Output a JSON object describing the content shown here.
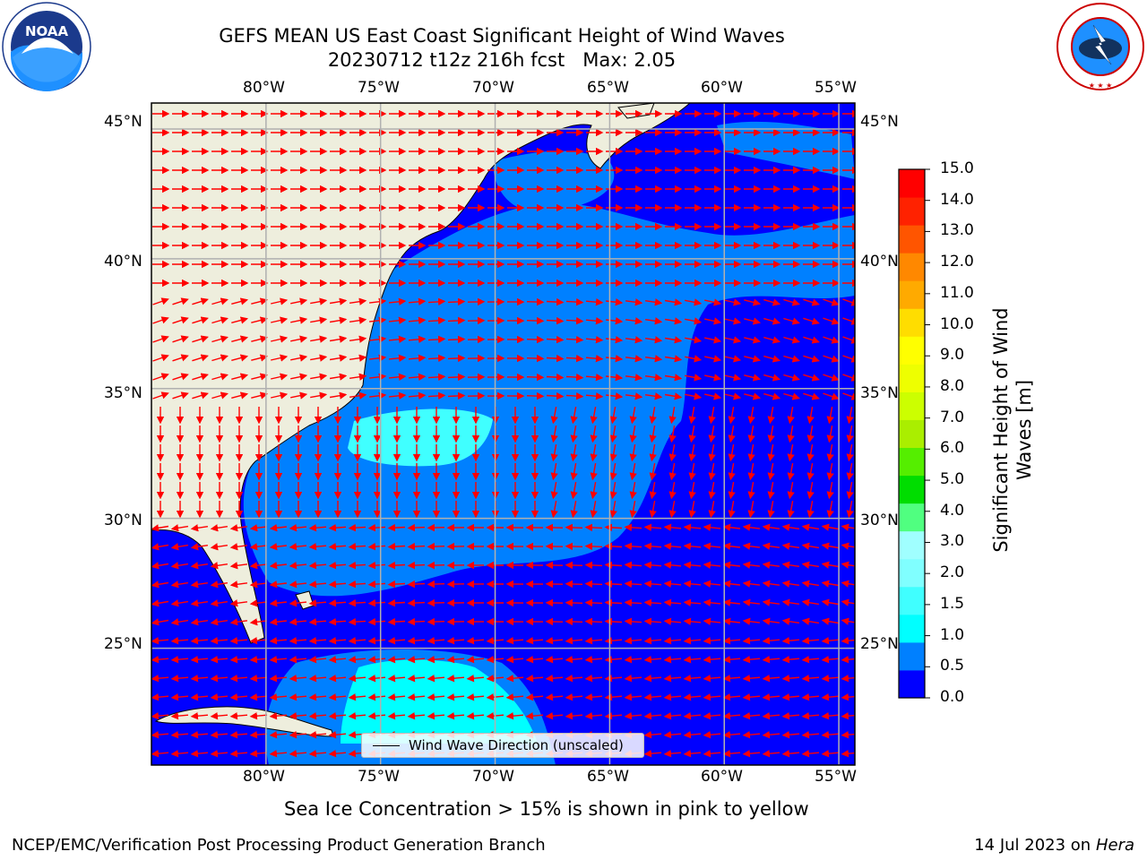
{
  "title": {
    "line1": "GEFS MEAN US East Coast Significant Height of Wind Waves",
    "line2": "20230712 t12z 216h fcst   Max: 2.05"
  },
  "logos": {
    "left": {
      "name": "noaa-logo",
      "text": "NOAA",
      "ring_text": "NATIONAL OCEANIC AND ATMOSPHERIC ADMINISTRATION · U.S. DEPARTMENT OF COMMERCE"
    },
    "right": {
      "name": "nws-logo",
      "ring_text": "NATIONAL WEATHER SERVICE"
    }
  },
  "map": {
    "lon_labels": [
      "80°W",
      "75°W",
      "70°W",
      "65°W",
      "60°W",
      "55°W"
    ],
    "lat_labels": [
      "45°N",
      "40°N",
      "35°N",
      "30°N",
      "25°N"
    ],
    "lon_range": [
      -85,
      -54.3
    ],
    "lat_range": [
      20.5,
      46
    ],
    "legend_text": "Wind Wave Direction (unscaled)",
    "arrow_color": "#ff0000",
    "land_color": "#eeeedd"
  },
  "colorbar": {
    "label": "Significant Height of Wind Waves [m]",
    "label_line1": "Significant Height of Wind",
    "label_line2": "Waves [m]",
    "ticks": [
      "15.0",
      "14.0",
      "13.0",
      "12.0",
      "11.0",
      "10.0",
      "9.0",
      "8.0",
      "7.0",
      "6.0",
      "5.0",
      "4.0",
      "3.0",
      "2.0",
      "1.5",
      "1.0",
      "0.5",
      "0.0"
    ],
    "colors": [
      "#0000ff",
      "#0080ff",
      "#00ffff",
      "#40ffff",
      "#80ffff",
      "#a0ffff",
      "#50ff80",
      "#00dd00",
      "#55ee00",
      "#aaee00",
      "#ccff00",
      "#eeff00",
      "#ffff00",
      "#ffdd00",
      "#ffaa00",
      "#ff8800",
      "#ff5500",
      "#ff2200",
      "#ff0000"
    ]
  },
  "notes": {
    "sea_ice": "Sea Ice Concentration > 15% is shown in pink to yellow",
    "credit": "NCEP/EMC/Verification Post Processing Product Generation Branch",
    "date_prefix": "14 Jul 2023 on ",
    "machine": "Hera"
  }
}
